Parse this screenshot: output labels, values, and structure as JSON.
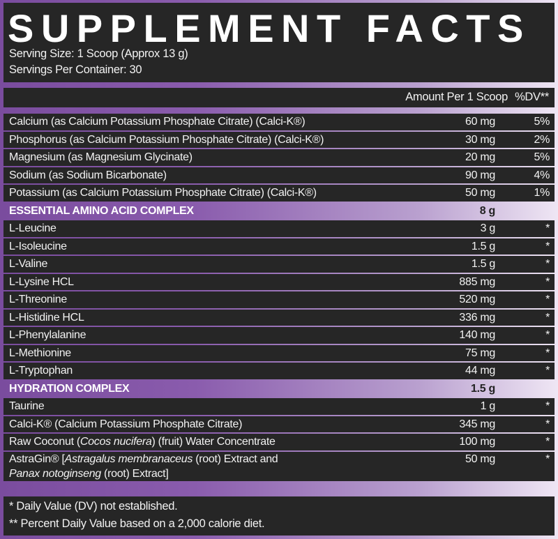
{
  "colors": {
    "panel": "#262626",
    "accent_left": "#7a4c9e",
    "accent_right": "#efe6f4"
  },
  "title": "SUPPLEMENT FACTS",
  "serving_size": "Serving Size: 1 Scoop (Approx 13 g)",
  "servings_per_container": "Servings Per Container: 30",
  "header": {
    "amount": "Amount Per 1 Scoop",
    "dv": "%DV**"
  },
  "rows": [
    {
      "name": [
        {
          "t": "Calcium (as Calcium Potassium Phosphate Citrate) (Calci-K®)"
        }
      ],
      "amount": "60 mg",
      "dv": "5%"
    },
    {
      "name": [
        {
          "t": "Phosphorus (as Calcium Potassium Phosphate Citrate) (Calci-K®)"
        }
      ],
      "amount": "30 mg",
      "dv": "2%"
    },
    {
      "name": [
        {
          "t": "Magnesium (as Magnesium Glycinate)"
        }
      ],
      "amount": "20 mg",
      "dv": "5%"
    },
    {
      "name": [
        {
          "t": "Sodium (as Sodium Bicarbonate)"
        }
      ],
      "amount": "90 mg",
      "dv": "4%"
    },
    {
      "name": [
        {
          "t": "Potassium (as Calcium Potassium Phosphate Citrate) (Calci-K®)"
        }
      ],
      "amount": "50 mg",
      "dv": "1%"
    },
    {
      "section": true,
      "name": [
        {
          "t": "ESSENTIAL AMINO ACID COMPLEX"
        }
      ],
      "amount": "8 g",
      "dv": ""
    },
    {
      "name": [
        {
          "t": "L-Leucine"
        }
      ],
      "amount": "3 g",
      "dv": "*"
    },
    {
      "name": [
        {
          "t": "L-Isoleucine"
        }
      ],
      "amount": "1.5 g",
      "dv": "*"
    },
    {
      "name": [
        {
          "t": "L-Valine"
        }
      ],
      "amount": "1.5 g",
      "dv": "*"
    },
    {
      "name": [
        {
          "t": "L-Lysine HCL"
        }
      ],
      "amount": "885 mg",
      "dv": "*"
    },
    {
      "name": [
        {
          "t": "L-Threonine"
        }
      ],
      "amount": "520 mg",
      "dv": "*"
    },
    {
      "name": [
        {
          "t": "L-Histidine HCL"
        }
      ],
      "amount": "336 mg",
      "dv": "*"
    },
    {
      "name": [
        {
          "t": "L-Phenylalanine"
        }
      ],
      "amount": "140 mg",
      "dv": "*"
    },
    {
      "name": [
        {
          "t": "L-Methionine"
        }
      ],
      "amount": "75 mg",
      "dv": "*"
    },
    {
      "name": [
        {
          "t": "L-Tryptophan"
        }
      ],
      "amount": "44 mg",
      "dv": "*"
    },
    {
      "section": true,
      "name": [
        {
          "t": "HYDRATION COMPLEX"
        }
      ],
      "amount": "1.5 g",
      "dv": ""
    },
    {
      "name": [
        {
          "t": "Taurine"
        }
      ],
      "amount": "1 g",
      "dv": "*"
    },
    {
      "name": [
        {
          "t": "Calci-K® (Calcium Potassium Phosphate Citrate)"
        }
      ],
      "amount": "345 mg",
      "dv": "*"
    },
    {
      "name": [
        {
          "t": "Raw Coconut ("
        },
        {
          "t": "Cocos nucifera",
          "i": true
        },
        {
          "t": ") (fruit) Water Concentrate"
        }
      ],
      "amount": "100 mg",
      "dv": "*"
    },
    {
      "tall": true,
      "name": [
        {
          "t": "AstraGin® ["
        },
        {
          "t": "Astragalus membranaceus",
          "i": true
        },
        {
          "t": " (root) Extract and"
        },
        {
          "br": true
        },
        {
          "t": "Panax notoginseng",
          "i": true
        },
        {
          "t": " (root) Extract]"
        }
      ],
      "amount": "50 mg",
      "dv": "*"
    }
  ],
  "footnotes": [
    "* Daily Value (DV) not established.",
    "** Percent Daily Value based on a 2,000 calorie diet."
  ]
}
